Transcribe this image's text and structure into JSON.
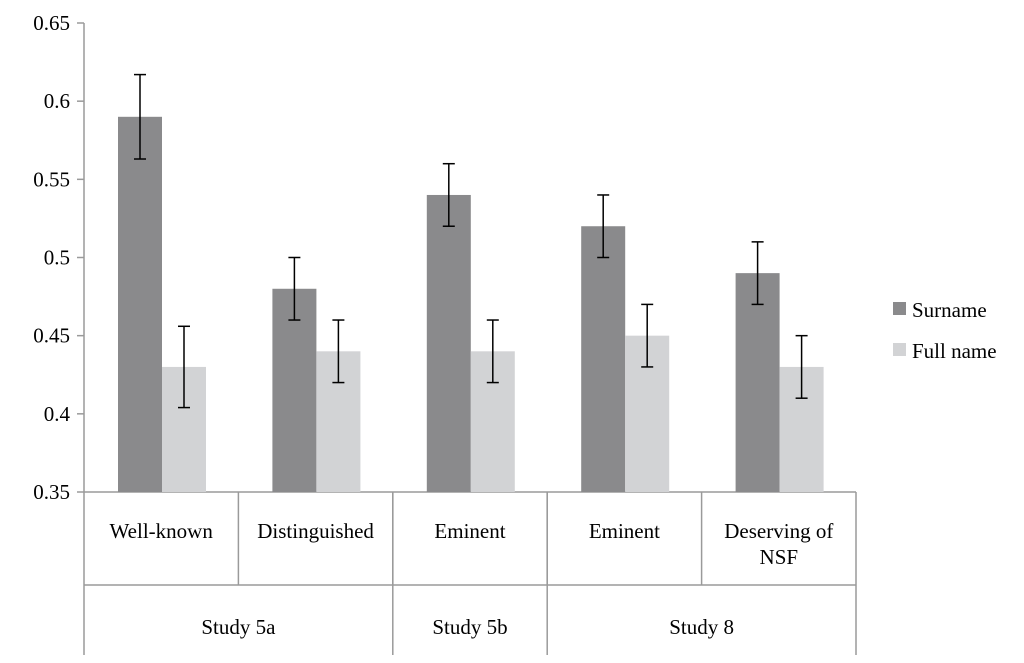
{
  "chart_data": {
    "type": "bar",
    "title": "",
    "xlabel": "",
    "ylabel": "",
    "ylim": [
      0.35,
      0.65
    ],
    "yticks": [
      0.35,
      0.4,
      0.45,
      0.5,
      0.55,
      0.6,
      0.65
    ],
    "ytick_labels": [
      "0.35",
      "0.4",
      "0.45",
      "0.5",
      "0.55",
      "0.6",
      "0.65"
    ],
    "grid": false,
    "legend_position": "right",
    "categories": [
      {
        "label": [
          "Well-known"
        ],
        "group": "Study 5a"
      },
      {
        "label": [
          "Distinguished"
        ],
        "group": "Study 5a"
      },
      {
        "label": [
          "Eminent"
        ],
        "group": "Study 5b"
      },
      {
        "label": [
          "Eminent"
        ],
        "group": "Study 8"
      },
      {
        "label": [
          "Deserving of",
          "NSF"
        ],
        "group": "Study 8"
      }
    ],
    "groups": [
      {
        "label": "Study 5a",
        "span": 2
      },
      {
        "label": "Study 5b",
        "span": 1
      },
      {
        "label": "Study 8",
        "span": 2
      }
    ],
    "series": [
      {
        "name": "Surname",
        "color": "#8a8a8c",
        "values": [
          0.59,
          0.48,
          0.54,
          0.52,
          0.49
        ],
        "error": [
          0.027,
          0.02,
          0.02,
          0.02,
          0.02
        ]
      },
      {
        "name": "Full name",
        "color": "#d2d3d5",
        "values": [
          0.43,
          0.44,
          0.44,
          0.45,
          0.43
        ],
        "error": [
          0.026,
          0.02,
          0.02,
          0.02,
          0.02
        ]
      }
    ]
  }
}
